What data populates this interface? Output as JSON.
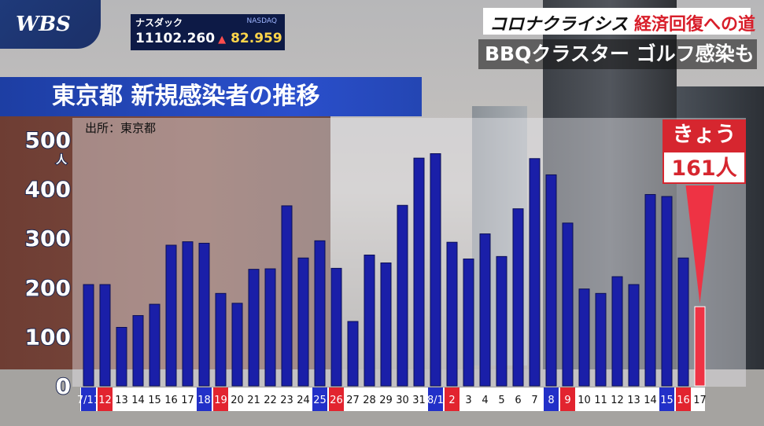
{
  "header": {
    "logo_text": "WBS",
    "ticker_name": "ナスダック",
    "ticker_tag": "NASDAQ",
    "ticker_value": "11102.260",
    "ticker_change": "82.959",
    "corner_title_part1": "コロナクライシス",
    "corner_title_part2": "経済回復への道",
    "subtitle": "BBQクラスター ゴルフ感染も"
  },
  "colors": {
    "bar_blue": "#1a1fa8",
    "bar_red": "#ee3344",
    "label_blue": "#2230c8",
    "label_red": "#e2242f"
  },
  "chart_data": {
    "type": "bar",
    "title": "東京都 新規感染者の推移",
    "source": "出所：東京都",
    "ylabel": "人",
    "ylim": [
      0,
      500
    ],
    "yticks": [
      0,
      100,
      200,
      300,
      400,
      500
    ],
    "grid": false,
    "categories": [
      "7/11",
      "12",
      "13",
      "14",
      "15",
      "16",
      "17",
      "18",
      "19",
      "20",
      "21",
      "22",
      "23",
      "24",
      "25",
      "26",
      "27",
      "28",
      "29",
      "30",
      "31",
      "8/1",
      "2",
      "3",
      "4",
      "5",
      "6",
      "7",
      "8",
      "9",
      "10",
      "11",
      "12",
      "13",
      "14",
      "15",
      "16",
      "17"
    ],
    "values": [
      206,
      206,
      119,
      143,
      166,
      286,
      293,
      290,
      188,
      168,
      237,
      238,
      366,
      260,
      295,
      239,
      131,
      266,
      250,
      367,
      463,
      472,
      292,
      258,
      309,
      263,
      360,
      462,
      429,
      331,
      197,
      188,
      222,
      206,
      389,
      385,
      260,
      161
    ],
    "label_styles": [
      "blue",
      "red",
      "plain",
      "plain",
      "plain",
      "plain",
      "plain",
      "blue",
      "red",
      "plain",
      "plain",
      "plain",
      "plain",
      "plain",
      "blue",
      "red",
      "plain",
      "plain",
      "plain",
      "plain",
      "plain",
      "blue",
      "red",
      "plain",
      "plain",
      "plain",
      "plain",
      "plain",
      "blue",
      "red",
      "plain",
      "plain",
      "plain",
      "plain",
      "plain",
      "blue",
      "red",
      "plain"
    ],
    "highlight_index": 37,
    "callout_label": "きょう",
    "callout_value": "161人"
  }
}
